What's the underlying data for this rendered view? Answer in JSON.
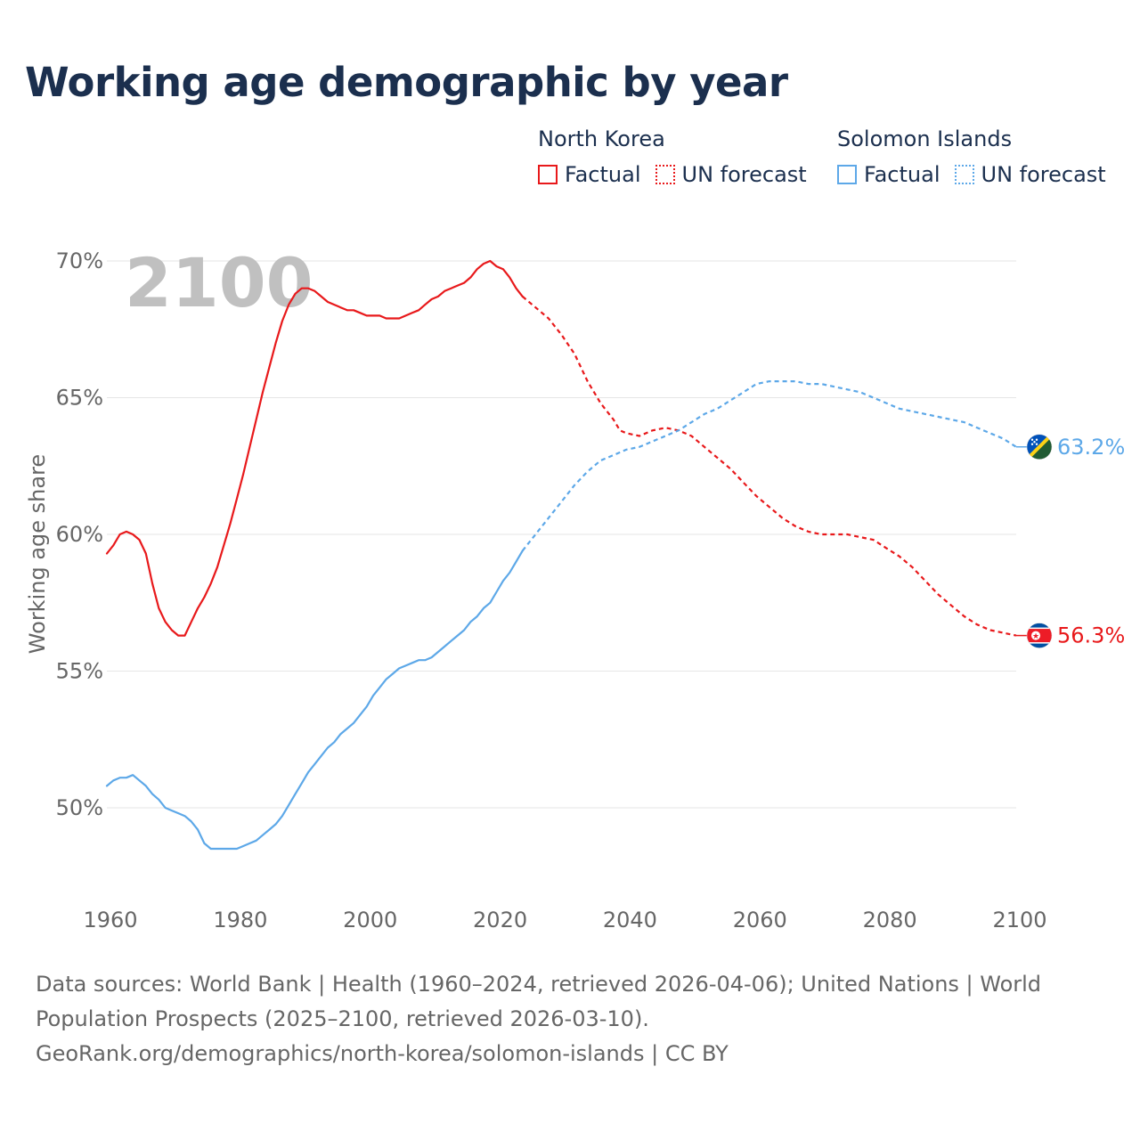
{
  "title": "Working age demographic by year",
  "legend": {
    "groups": [
      {
        "country": "North Korea",
        "factual": "Factual",
        "forecast": "UN forecast",
        "color": "#e8191b"
      },
      {
        "country": "Solomon Islands",
        "factual": "Factual",
        "forecast": "UN forecast",
        "color": "#5da8e8"
      }
    ]
  },
  "chart_data": {
    "type": "line",
    "year_overlay": "2100",
    "ylabel": "Working age share",
    "xlim": [
      1960,
      2100
    ],
    "ylim": [
      48,
      70
    ],
    "x_ticks": [
      "1960",
      "1980",
      "2000",
      "2020",
      "2040",
      "2060",
      "2080",
      "2100"
    ],
    "x_tick_values": [
      1960,
      1980,
      2000,
      2020,
      2040,
      2060,
      2080,
      2100
    ],
    "y_ticks": [
      "50%",
      "55%",
      "60%",
      "65%",
      "70%"
    ],
    "y_tick_values": [
      50,
      55,
      60,
      65,
      70
    ],
    "forecast_start": 2024,
    "series": [
      {
        "name": "North Korea",
        "color": "#e8191b",
        "end_label": "56.3%",
        "flag": "north-korea-flag-icon",
        "points": [
          [
            1960,
            59.3
          ],
          [
            1961,
            59.6
          ],
          [
            1962,
            60.0
          ],
          [
            1963,
            60.1
          ],
          [
            1964,
            60.0
          ],
          [
            1965,
            59.8
          ],
          [
            1966,
            59.3
          ],
          [
            1967,
            58.2
          ],
          [
            1968,
            57.3
          ],
          [
            1969,
            56.8
          ],
          [
            1970,
            56.5
          ],
          [
            1971,
            56.3
          ],
          [
            1972,
            56.3
          ],
          [
            1973,
            56.8
          ],
          [
            1974,
            57.3
          ],
          [
            1975,
            57.7
          ],
          [
            1976,
            58.2
          ],
          [
            1977,
            58.8
          ],
          [
            1978,
            59.6
          ],
          [
            1979,
            60.4
          ],
          [
            1980,
            61.3
          ],
          [
            1981,
            62.2
          ],
          [
            1982,
            63.2
          ],
          [
            1983,
            64.2
          ],
          [
            1984,
            65.2
          ],
          [
            1985,
            66.1
          ],
          [
            1986,
            67.0
          ],
          [
            1987,
            67.8
          ],
          [
            1988,
            68.4
          ],
          [
            1989,
            68.8
          ],
          [
            1990,
            69.0
          ],
          [
            1991,
            69.0
          ],
          [
            1992,
            68.9
          ],
          [
            1993,
            68.7
          ],
          [
            1994,
            68.5
          ],
          [
            1995,
            68.4
          ],
          [
            1996,
            68.3
          ],
          [
            1997,
            68.2
          ],
          [
            1998,
            68.2
          ],
          [
            1999,
            68.1
          ],
          [
            2000,
            68.0
          ],
          [
            2001,
            68.0
          ],
          [
            2002,
            68.0
          ],
          [
            2003,
            67.9
          ],
          [
            2004,
            67.9
          ],
          [
            2005,
            67.9
          ],
          [
            2006,
            68.0
          ],
          [
            2007,
            68.1
          ],
          [
            2008,
            68.2
          ],
          [
            2009,
            68.4
          ],
          [
            2010,
            68.6
          ],
          [
            2011,
            68.7
          ],
          [
            2012,
            68.9
          ],
          [
            2013,
            69.0
          ],
          [
            2014,
            69.1
          ],
          [
            2015,
            69.2
          ],
          [
            2016,
            69.4
          ],
          [
            2017,
            69.7
          ],
          [
            2018,
            69.9
          ],
          [
            2019,
            70.0
          ],
          [
            2020,
            69.8
          ],
          [
            2021,
            69.7
          ],
          [
            2022,
            69.4
          ],
          [
            2023,
            69.0
          ],
          [
            2024,
            68.7
          ],
          [
            2026,
            68.3
          ],
          [
            2028,
            67.9
          ],
          [
            2030,
            67.3
          ],
          [
            2032,
            66.6
          ],
          [
            2034,
            65.6
          ],
          [
            2036,
            64.8
          ],
          [
            2038,
            64.2
          ],
          [
            2039,
            63.8
          ],
          [
            2040,
            63.7
          ],
          [
            2042,
            63.6
          ],
          [
            2044,
            63.8
          ],
          [
            2046,
            63.9
          ],
          [
            2048,
            63.8
          ],
          [
            2050,
            63.6
          ],
          [
            2052,
            63.2
          ],
          [
            2054,
            62.8
          ],
          [
            2056,
            62.4
          ],
          [
            2058,
            61.9
          ],
          [
            2060,
            61.4
          ],
          [
            2062,
            61.0
          ],
          [
            2064,
            60.6
          ],
          [
            2066,
            60.3
          ],
          [
            2068,
            60.1
          ],
          [
            2070,
            60.0
          ],
          [
            2074,
            60.0
          ],
          [
            2076,
            59.9
          ],
          [
            2078,
            59.8
          ],
          [
            2080,
            59.5
          ],
          [
            2082,
            59.2
          ],
          [
            2084,
            58.8
          ],
          [
            2086,
            58.3
          ],
          [
            2088,
            57.8
          ],
          [
            2090,
            57.4
          ],
          [
            2092,
            57.0
          ],
          [
            2094,
            56.7
          ],
          [
            2096,
            56.5
          ],
          [
            2098,
            56.4
          ],
          [
            2100,
            56.3
          ]
        ]
      },
      {
        "name": "Solomon Islands",
        "color": "#5da8e8",
        "end_label": "63.2%",
        "flag": "solomon-islands-flag-icon",
        "points": [
          [
            1960,
            50.8
          ],
          [
            1961,
            51.0
          ],
          [
            1962,
            51.1
          ],
          [
            1963,
            51.1
          ],
          [
            1964,
            51.2
          ],
          [
            1965,
            51.0
          ],
          [
            1966,
            50.8
          ],
          [
            1967,
            50.5
          ],
          [
            1968,
            50.3
          ],
          [
            1969,
            50.0
          ],
          [
            1970,
            49.9
          ],
          [
            1971,
            49.8
          ],
          [
            1972,
            49.7
          ],
          [
            1973,
            49.5
          ],
          [
            1974,
            49.2
          ],
          [
            1975,
            48.7
          ],
          [
            1976,
            48.5
          ],
          [
            1977,
            48.5
          ],
          [
            1978,
            48.5
          ],
          [
            1979,
            48.5
          ],
          [
            1980,
            48.5
          ],
          [
            1981,
            48.6
          ],
          [
            1982,
            48.7
          ],
          [
            1983,
            48.8
          ],
          [
            1984,
            49.0
          ],
          [
            1985,
            49.2
          ],
          [
            1986,
            49.4
          ],
          [
            1987,
            49.7
          ],
          [
            1988,
            50.1
          ],
          [
            1989,
            50.5
          ],
          [
            1990,
            50.9
          ],
          [
            1991,
            51.3
          ],
          [
            1992,
            51.6
          ],
          [
            1993,
            51.9
          ],
          [
            1994,
            52.2
          ],
          [
            1995,
            52.4
          ],
          [
            1996,
            52.7
          ],
          [
            1997,
            52.9
          ],
          [
            1998,
            53.1
          ],
          [
            1999,
            53.4
          ],
          [
            2000,
            53.7
          ],
          [
            2001,
            54.1
          ],
          [
            2002,
            54.4
          ],
          [
            2003,
            54.7
          ],
          [
            2004,
            54.9
          ],
          [
            2005,
            55.1
          ],
          [
            2006,
            55.2
          ],
          [
            2007,
            55.3
          ],
          [
            2008,
            55.4
          ],
          [
            2009,
            55.4
          ],
          [
            2010,
            55.5
          ],
          [
            2011,
            55.7
          ],
          [
            2012,
            55.9
          ],
          [
            2013,
            56.1
          ],
          [
            2014,
            56.3
          ],
          [
            2015,
            56.5
          ],
          [
            2016,
            56.8
          ],
          [
            2017,
            57.0
          ],
          [
            2018,
            57.3
          ],
          [
            2019,
            57.5
          ],
          [
            2020,
            57.9
          ],
          [
            2021,
            58.3
          ],
          [
            2022,
            58.6
          ],
          [
            2023,
            59.0
          ],
          [
            2024,
            59.4
          ],
          [
            2026,
            60.0
          ],
          [
            2028,
            60.6
          ],
          [
            2030,
            61.2
          ],
          [
            2032,
            61.8
          ],
          [
            2034,
            62.3
          ],
          [
            2036,
            62.7
          ],
          [
            2038,
            62.9
          ],
          [
            2040,
            63.1
          ],
          [
            2042,
            63.2
          ],
          [
            2044,
            63.4
          ],
          [
            2046,
            63.6
          ],
          [
            2048,
            63.8
          ],
          [
            2050,
            64.1
          ],
          [
            2052,
            64.4
          ],
          [
            2054,
            64.6
          ],
          [
            2056,
            64.9
          ],
          [
            2058,
            65.2
          ],
          [
            2060,
            65.5
          ],
          [
            2062,
            65.6
          ],
          [
            2064,
            65.6
          ],
          [
            2066,
            65.6
          ],
          [
            2068,
            65.5
          ],
          [
            2070,
            65.5
          ],
          [
            2072,
            65.4
          ],
          [
            2074,
            65.3
          ],
          [
            2076,
            65.2
          ],
          [
            2078,
            65.0
          ],
          [
            2080,
            64.8
          ],
          [
            2082,
            64.6
          ],
          [
            2084,
            64.5
          ],
          [
            2086,
            64.4
          ],
          [
            2088,
            64.3
          ],
          [
            2090,
            64.2
          ],
          [
            2092,
            64.1
          ],
          [
            2094,
            63.9
          ],
          [
            2096,
            63.7
          ],
          [
            2098,
            63.5
          ],
          [
            2100,
            63.2
          ]
        ]
      }
    ]
  },
  "footer": {
    "line1": "Data sources: World Bank | Health (1960–2024, retrieved 2026-04-06); United Nations | World Population Prospects (2025–2100, retrieved 2026-03-10).",
    "line2": "GeoRank.org/demographics/north-korea/solomon-islands | CC BY"
  }
}
